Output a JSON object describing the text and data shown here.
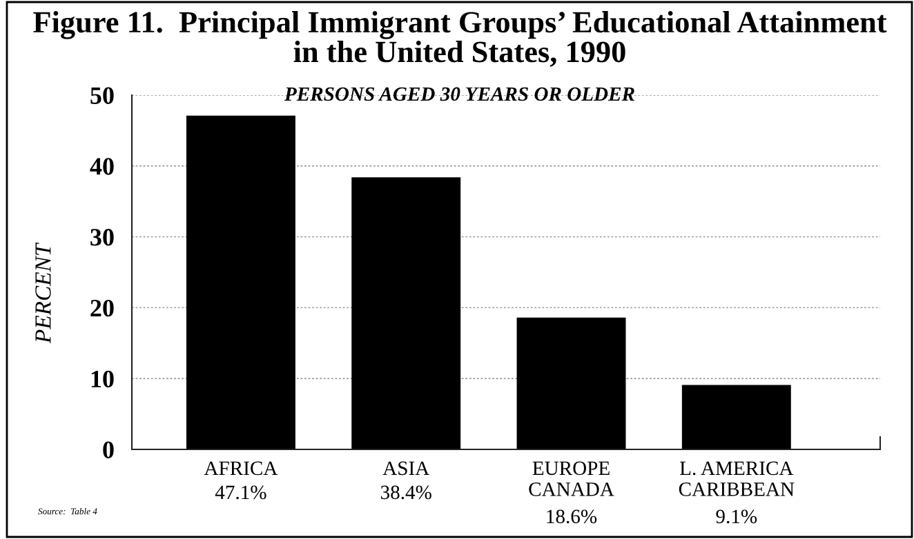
{
  "chart_data": {
    "type": "bar",
    "title": "Figure 11.  Principal Immigrant Groups’ Educational Attainment\nin the United States, 1990",
    "subtitle": "PERSONS AGED 30 YEARS OR OLDER",
    "ylabel": "PERCENT",
    "categories": [
      "AFRICA",
      "ASIA",
      "EUROPE\nCANADA",
      "L. AMERICA\nCARIBBEAN"
    ],
    "values": [
      47.1,
      38.4,
      18.6,
      9.1
    ],
    "value_labels": [
      "47.1%",
      "38.4%",
      "18.6%",
      "9.1%"
    ],
    "color": "#000000",
    "ylim": [
      0,
      50
    ],
    "yticks": [
      0,
      10,
      20,
      30,
      40,
      50
    ],
    "grid": "y",
    "annotations": [
      "Source:  Table 4"
    ]
  }
}
